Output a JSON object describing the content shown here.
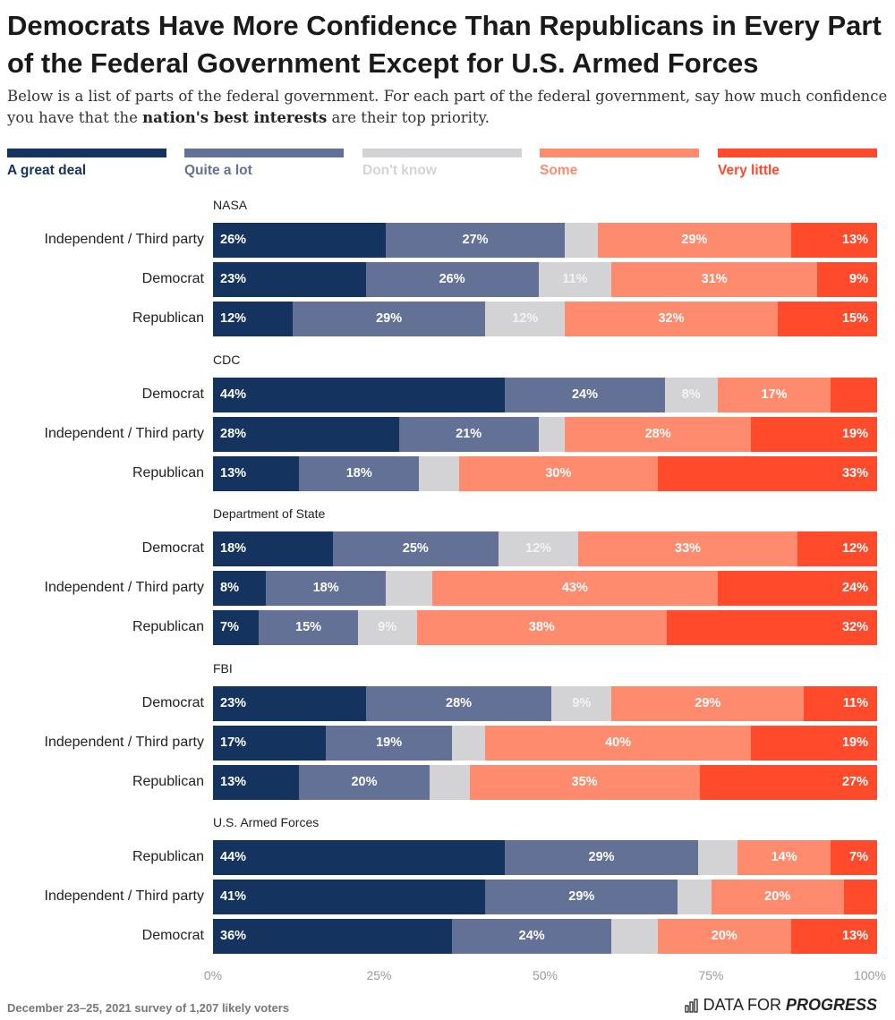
{
  "title": "Democrats Have More Confidence Than Republicans in Every Part of the Federal Government Except for U.S. Armed Forces",
  "subtitle_before": "Below is a list of parts of the federal government. For each part of the federal government, say how much confidence you have that the ",
  "subtitle_bold": "nation's best interests",
  "subtitle_after": " are their top priority.",
  "footer": "December 23–25, 2021 survey of 1,207 likely voters",
  "brand": {
    "left": "DATA FOR",
    "right": "PROGRESS"
  },
  "chart_data": {
    "type": "bar",
    "orientation": "horizontal",
    "stacked": true,
    "xlim": [
      0,
      100
    ],
    "x_ticks": [
      "0%",
      "25%",
      "50%",
      "75%",
      "100%"
    ],
    "legend_position": "top",
    "series": [
      {
        "name": "A great deal",
        "color": "#14335f"
      },
      {
        "name": "Quite a lot",
        "color": "#637196"
      },
      {
        "name": "Don't know",
        "color": "#d3d3d5"
      },
      {
        "name": "Some",
        "color": "#ff8b6e"
      },
      {
        "name": "Very little",
        "color": "#ff4a2c"
      }
    ],
    "groups": [
      {
        "name": "NASA",
        "rows": [
          {
            "label": "Independent / Third party",
            "values": [
              26,
              27,
              5,
              29,
              13
            ],
            "labels": [
              "26%",
              "27%",
              "",
              "29%",
              "13%"
            ]
          },
          {
            "label": "Democrat",
            "values": [
              23,
              26,
              11,
              31,
              9
            ],
            "labels": [
              "23%",
              "26%",
              "11%",
              "31%",
              "9%"
            ]
          },
          {
            "label": "Republican",
            "values": [
              12,
              29,
              12,
              32,
              15
            ],
            "labels": [
              "12%",
              "29%",
              "12%",
              "32%",
              "15%"
            ]
          }
        ]
      },
      {
        "name": "CDC",
        "rows": [
          {
            "label": "Democrat",
            "values": [
              44,
              24,
              8,
              17,
              7
            ],
            "labels": [
              "44%",
              "24%",
              "8%",
              "17%",
              ""
            ]
          },
          {
            "label": "Independent / Third party",
            "values": [
              28,
              21,
              4,
              28,
              19
            ],
            "labels": [
              "28%",
              "21%",
              "",
              "28%",
              "19%"
            ]
          },
          {
            "label": "Republican",
            "values": [
              13,
              18,
              6,
              30,
              33
            ],
            "labels": [
              "13%",
              "18%",
              "",
              "30%",
              "33%"
            ]
          }
        ]
      },
      {
        "name": "Department of State",
        "rows": [
          {
            "label": "Democrat",
            "values": [
              18,
              25,
              12,
              33,
              12
            ],
            "labels": [
              "18%",
              "25%",
              "12%",
              "33%",
              "12%"
            ]
          },
          {
            "label": "Independent / Third party",
            "values": [
              8,
              18,
              7,
              43,
              24
            ],
            "labels": [
              "8%",
              "18%",
              "",
              "43%",
              "24%"
            ]
          },
          {
            "label": "Republican",
            "values": [
              7,
              15,
              9,
              38,
              32
            ],
            "labels": [
              "7%",
              "15%",
              "9%",
              "38%",
              "32%"
            ]
          }
        ]
      },
      {
        "name": "FBI",
        "rows": [
          {
            "label": "Democrat",
            "values": [
              23,
              28,
              9,
              29,
              11
            ],
            "labels": [
              "23%",
              "28%",
              "9%",
              "29%",
              "11%"
            ]
          },
          {
            "label": "Independent / Third party",
            "values": [
              17,
              19,
              5,
              40,
              19
            ],
            "labels": [
              "17%",
              "19%",
              "",
              "40%",
              "19%"
            ]
          },
          {
            "label": "Republican",
            "values": [
              13,
              20,
              6,
              35,
              27
            ],
            "labels": [
              "13%",
              "20%",
              "",
              "35%",
              "27%"
            ]
          }
        ]
      },
      {
        "name": "U.S. Armed Forces",
        "rows": [
          {
            "label": "Republican",
            "values": [
              44,
              29,
              6,
              14,
              7
            ],
            "labels": [
              "44%",
              "29%",
              "",
              "14%",
              "7%"
            ]
          },
          {
            "label": "Independent / Third party",
            "values": [
              41,
              29,
              5,
              20,
              5
            ],
            "labels": [
              "41%",
              "29%",
              "",
              "20%",
              ""
            ]
          },
          {
            "label": "Democrat",
            "values": [
              36,
              24,
              7,
              20,
              13
            ],
            "labels": [
              "36%",
              "24%",
              "",
              "20%",
              "13%"
            ]
          }
        ]
      }
    ]
  }
}
